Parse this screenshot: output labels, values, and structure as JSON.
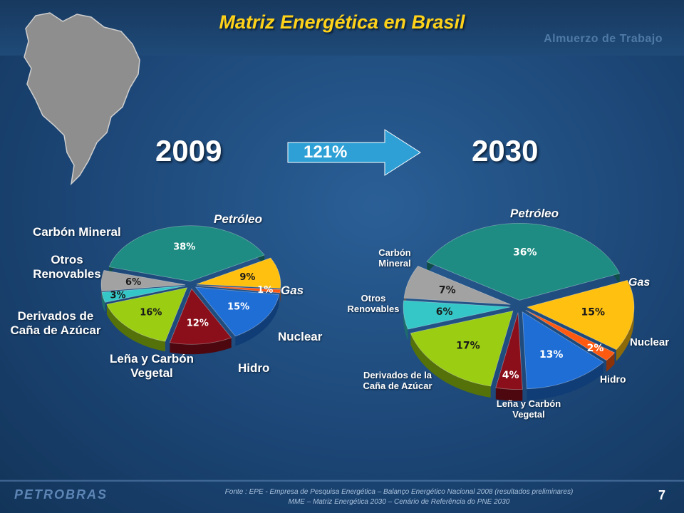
{
  "header": {
    "title": "Matriz Energética en Brasil",
    "watermark": "Almuerzo de Trabajo"
  },
  "growth": {
    "label": "121%"
  },
  "footer": {
    "logo": "PETROBRAS",
    "source_line1": "Fonte : EPE - Empresa de Pesquisa Energética – Balanço Energético Nacional 2008 (resultados preliminares)",
    "source_line2": "MME – Matriz Energética 2030 – Cenário de Referência do PNE 2030",
    "page": "7"
  },
  "colors": {
    "petroleo": "#1e8c82",
    "gas": "#ffc010",
    "nuclear": "#ff5a10",
    "hidro": "#1f6ed6",
    "lena": "#8a0f1a",
    "derivados": "#9bcd12",
    "otros": "#35c7c7",
    "carbon": "#a2a2a2"
  },
  "chart_data": [
    {
      "type": "pie",
      "title": "2009",
      "slices": [
        {
          "name": "Petróleo",
          "value": 38,
          "label": "38%"
        },
        {
          "name": "Gas",
          "value": 9,
          "label": "9%"
        },
        {
          "name": "Nuclear",
          "value": 1,
          "label": "1%"
        },
        {
          "name": "Hidro",
          "value": 15,
          "label": "15%"
        },
        {
          "name": "Leña y Carbón Vegetal",
          "value": 12,
          "label": "12%"
        },
        {
          "name": "Derivados de Caña de Azúcar",
          "value": 16,
          "label": "16%"
        },
        {
          "name": "Otros Renovables",
          "value": 3,
          "label": "3%"
        },
        {
          "name": "Carbón Mineral",
          "value": 6,
          "label": "6%"
        }
      ]
    },
    {
      "type": "pie",
      "title": "2030",
      "slices": [
        {
          "name": "Petróleo",
          "value": 36,
          "label": "36%"
        },
        {
          "name": "Gas",
          "value": 15,
          "label": "15%"
        },
        {
          "name": "Nuclear",
          "value": 2,
          "label": "2%"
        },
        {
          "name": "Hidro",
          "value": 13,
          "label": "13%"
        },
        {
          "name": "Leña y Carbón Vegetal",
          "value": 4,
          "label": "4%"
        },
        {
          "name": "Derivados de la Caña de Azúcar",
          "value": 17,
          "label": "17%"
        },
        {
          "name": "Otros Renovables",
          "value": 6,
          "label": "6%"
        },
        {
          "name": "Carbón Mineral",
          "value": 7,
          "label": "7%"
        }
      ]
    }
  ]
}
